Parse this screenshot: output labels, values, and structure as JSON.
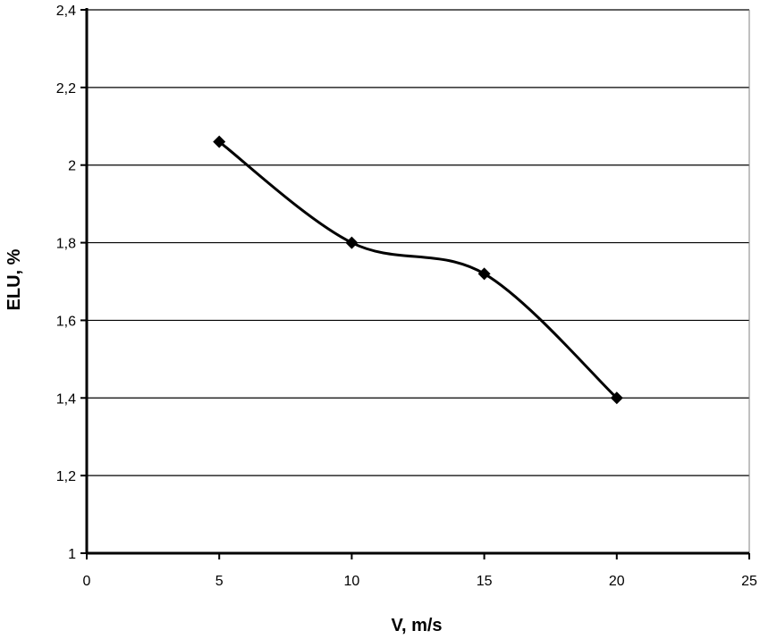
{
  "chart_data": {
    "type": "line",
    "title": "",
    "xlabel": "V, m/s",
    "ylabel": "ELU, %",
    "xlim": [
      0,
      25
    ],
    "ylim": [
      1,
      2.4
    ],
    "xticks": [
      0,
      5,
      10,
      15,
      20,
      25
    ],
    "xtick_labels": [
      "0",
      "5",
      "10",
      "15",
      "20",
      "25"
    ],
    "yticks": [
      1,
      1.2,
      1.4,
      1.6,
      1.8,
      2,
      2.2,
      2.4
    ],
    "ytick_labels": [
      "1",
      "1,2",
      "1,4",
      "1,6",
      "1,8",
      "2",
      "2,2",
      "2,4"
    ],
    "grid": "horizontal",
    "marker": "diamond",
    "smooth": true,
    "series": [
      {
        "x": [
          5,
          10,
          15,
          20
        ],
        "values": [
          2.06,
          1.8,
          1.72,
          1.4
        ]
      }
    ]
  }
}
